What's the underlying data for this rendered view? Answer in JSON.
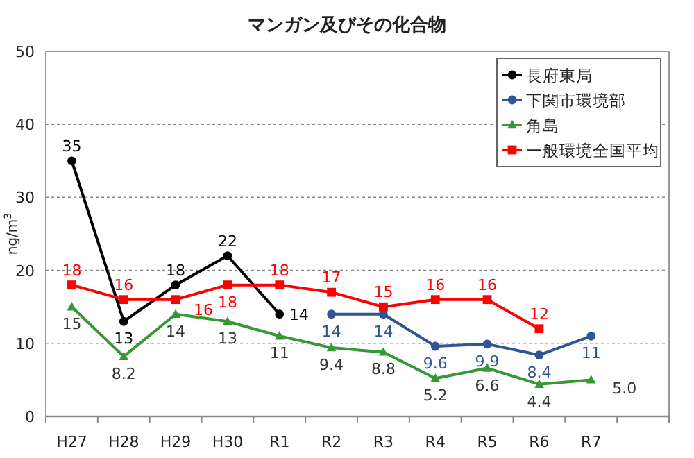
{
  "chart_data": {
    "type": "line",
    "title": "マンガン及びその化合物",
    "ylabel": "ng/m$^{3}$",
    "categories": [
      "H27",
      "H28",
      "H29",
      "H30",
      "R1",
      "R2",
      "R3",
      "R4",
      "R5",
      "R6",
      "R7",
      null
    ],
    "ylim": [
      0,
      50
    ],
    "yticks": [
      0,
      10,
      20,
      30,
      40,
      50
    ],
    "grid": "y",
    "legend": "top right",
    "series": [
      {
        "name": "長府東局",
        "color": "#000000",
        "marker": "circle",
        "values": [
          35,
          13,
          18,
          22,
          14,
          null,
          null,
          null,
          null,
          null,
          null,
          null
        ],
        "value_labels": [
          "35",
          "13",
          "18",
          "22",
          "14",
          null,
          null,
          null,
          null,
          null,
          null,
          null
        ]
      },
      {
        "name": "下関市環境部",
        "color": "#2f5597",
        "marker": "circle",
        "values": [
          null,
          null,
          null,
          null,
          null,
          14,
          14,
          9.6,
          9.9,
          8.4,
          11,
          null
        ],
        "value_labels": [
          null,
          null,
          null,
          null,
          null,
          "14",
          "14",
          "9.6",
          "9.9",
          "8.4",
          "11",
          null
        ]
      },
      {
        "name": "角島",
        "color": "#339933",
        "marker": "triangle",
        "values": [
          15,
          8.2,
          14,
          13,
          11,
          9.4,
          8.8,
          5.2,
          6.6,
          4.4,
          5.0,
          null
        ],
        "value_labels": [
          "15",
          "8.2",
          "14",
          "13",
          "11",
          "9.4",
          "8.8",
          "5.2",
          "6.6",
          "4.4",
          "5.0",
          null
        ]
      },
      {
        "name": "一般環境全国平均",
        "color": "#ff0000",
        "marker": "square",
        "values": [
          18,
          16,
          16,
          18,
          18,
          17,
          15,
          16,
          16,
          12,
          null,
          null
        ],
        "value_labels": [
          "18",
          "16",
          "16",
          "18",
          "18",
          "17",
          "15",
          "16",
          "16",
          "12",
          null,
          null
        ]
      }
    ]
  }
}
